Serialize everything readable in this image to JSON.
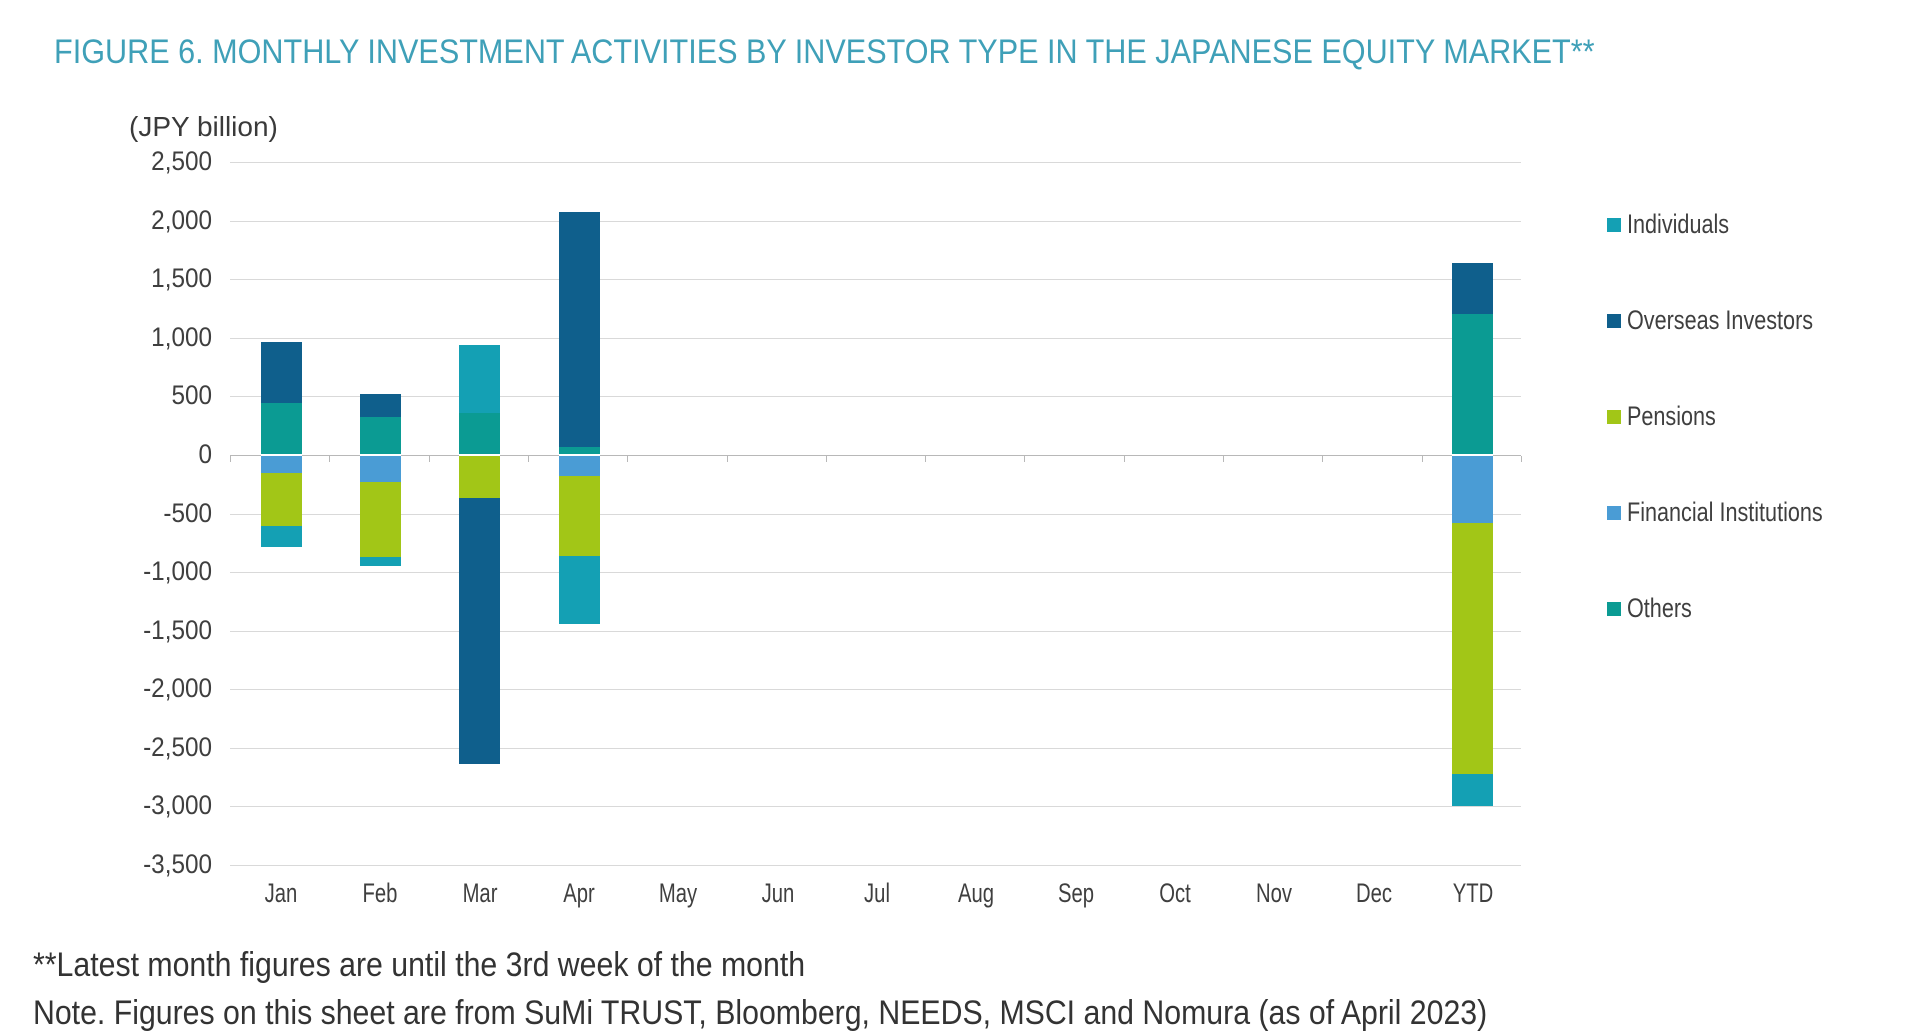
{
  "title": "FIGURE 6. MONTHLY INVESTMENT ACTIVITIES BY INVESTOR TYPE IN THE JAPANESE EQUITY MARKET**",
  "unit_label": "(JPY billion)",
  "footnotes": [
    "**Latest month figures are until the 3rd week of the month",
    "Note. Figures on this sheet are from SuMi TRUST, Bloomberg, NEEDS, MSCI and Nomura (as of April 2023)"
  ],
  "colors": {
    "title": "#3FA0B8",
    "gridline": "#d9d9d9",
    "zero_line": "#b8b8b8",
    "axis_text": "#3f3f3f"
  },
  "chart_data": {
    "type": "bar",
    "stacked": true,
    "grid": true,
    "legend_position": "right",
    "categories": [
      "Jan",
      "Feb",
      "Mar",
      "Apr",
      "May",
      "Jun",
      "Jul",
      "Aug",
      "Sep",
      "Oct",
      "Nov",
      "Dec",
      "YTD"
    ],
    "series": [
      {
        "name": "Individuals",
        "color": "#14A0B4",
        "values": [
          -177,
          -71,
          579,
          -586,
          0,
          0,
          0,
          0,
          0,
          0,
          0,
          0,
          -276
        ]
      },
      {
        "name": "Overseas Investors",
        "color": "#0F5F8C",
        "values": [
          513,
          192,
          -2268,
          2005,
          0,
          0,
          0,
          0,
          0,
          0,
          0,
          0,
          434
        ]
      },
      {
        "name": "Pensions",
        "color": "#A2C617",
        "values": [
          -451,
          -644,
          -367,
          -683,
          0,
          0,
          0,
          0,
          0,
          0,
          0,
          0,
          -2141
        ]
      },
      {
        "name": "Financial Institutions",
        "color": "#4A9CD5",
        "values": [
          -156,
          -231,
          0,
          -178,
          0,
          0,
          0,
          0,
          0,
          0,
          0,
          0,
          -579
        ]
      },
      {
        "name": "Others",
        "color": "#0B9B93",
        "values": [
          447,
          325,
          358,
          66,
          0,
          0,
          0,
          0,
          0,
          0,
          0,
          0,
          1200
        ]
      }
    ],
    "stack_order_from_axis": [
      "Others",
      "Financial Institutions",
      "Pensions",
      "Overseas Investors",
      "Individuals"
    ],
    "ylabel": "(JPY billion)",
    "ylim": [
      -3500,
      2500
    ],
    "ytick_step": 500
  }
}
